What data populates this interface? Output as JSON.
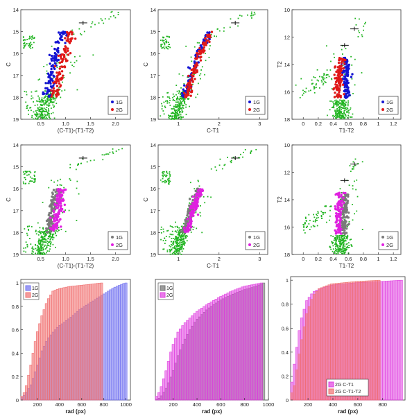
{
  "colors": {
    "field": "#22b522",
    "g1_top": "#1414d2",
    "g2_top": "#e01818",
    "g1_mid": "#7a7a7a",
    "g2_mid": "#e020e0",
    "hist_blue": "#7070f0",
    "hist_red": "#f07070",
    "hist_grey": "#707070",
    "hist_mag": "#e040e0",
    "hist_overlap": "#b0508f"
  },
  "chart_data": [
    {
      "type": "scatter",
      "panel": "top-left",
      "xlabel": "(C-T1)-(T1-T2)",
      "ylabel": "C",
      "xlim": [
        0.1,
        2.3
      ],
      "ylim": [
        19,
        14
      ],
      "y_inverted": true,
      "xticks": [
        "0.5",
        "1.0",
        "1.5",
        "2.0"
      ],
      "yticks": [
        "14",
        "15",
        "16",
        "17",
        "18",
        "19"
      ],
      "legend": {
        "position": "bottom-right",
        "entries": [
          "1G",
          "2G"
        ]
      },
      "series": [
        {
          "name": "1G",
          "ridge": [
            [
              0.62,
              18.0
            ],
            [
              0.72,
              17.0
            ],
            [
              0.8,
              16.0
            ],
            [
              0.95,
              15.0
            ]
          ]
        },
        {
          "name": "2G",
          "ridge": [
            [
              0.78,
              18.0
            ],
            [
              0.88,
              17.0
            ],
            [
              0.98,
              16.0
            ],
            [
              1.1,
              15.0
            ]
          ]
        }
      ],
      "field_stars": "green scattered points (upper RGB/AGB, blue-tail sequence, main sequence below C=18)"
    },
    {
      "type": "scatter",
      "panel": "top-center",
      "xlabel": "C-T1",
      "ylabel": "C",
      "xlim": [
        0.5,
        3.2
      ],
      "ylim": [
        19,
        14
      ],
      "y_inverted": true,
      "xticks": [
        "1",
        "2",
        "3"
      ],
      "yticks": [
        "14",
        "15",
        "16",
        "17",
        "18",
        "19"
      ],
      "legend": {
        "position": "bottom-right",
        "entries": [
          "1G",
          "2G"
        ]
      },
      "series": [
        {
          "name": "1G",
          "ridge": [
            [
              1.15,
              18.0
            ],
            [
              1.3,
              17.0
            ],
            [
              1.5,
              16.0
            ],
            [
              1.75,
              15.0
            ]
          ]
        },
        {
          "name": "2G",
          "ridge": [
            [
              1.2,
              18.0
            ],
            [
              1.35,
              17.0
            ],
            [
              1.55,
              16.0
            ],
            [
              1.8,
              15.0
            ]
          ]
        }
      ]
    },
    {
      "type": "scatter",
      "panel": "top-right",
      "xlabel": "T1-T2",
      "ylabel": "T2",
      "xlim": [
        -0.15,
        1.3
      ],
      "ylim": [
        18,
        10
      ],
      "y_inverted": true,
      "xticks": [
        "0",
        "0.2",
        "0.4",
        "0.6",
        "0.8",
        "1",
        "1.2"
      ],
      "yticks": [
        "10",
        "12",
        "14",
        "16",
        "18"
      ],
      "legend": {
        "position": "bottom-right",
        "entries": [
          "1G",
          "2G"
        ]
      },
      "series": [
        {
          "name": "1G",
          "ridge": [
            [
              0.57,
              16.5
            ],
            [
              0.57,
              15.0
            ],
            [
              0.57,
              13.5
            ]
          ]
        },
        {
          "name": "2G",
          "ridge": [
            [
              0.47,
              16.5
            ],
            [
              0.47,
              15.0
            ],
            [
              0.5,
              13.5
            ]
          ]
        }
      ]
    },
    {
      "type": "scatter",
      "panel": "middle-left",
      "xlabel": "(C-T1)-(T1-T2)",
      "ylabel": "C",
      "xlim": [
        0.1,
        2.3
      ],
      "ylim": [
        19,
        14
      ],
      "y_inverted": true,
      "xticks": [
        "0.5",
        "1.0",
        "1.5",
        "2.0"
      ],
      "yticks": [
        "14",
        "15",
        "16",
        "17",
        "18",
        "19"
      ],
      "legend": {
        "position": "bottom-right",
        "entries": [
          "1G",
          "2G"
        ]
      },
      "series": [
        {
          "name": "1G",
          "ridge": [
            [
              0.65,
              18.0
            ],
            [
              0.75,
              17.0
            ],
            [
              0.82,
              16.0
            ]
          ]
        },
        {
          "name": "2G",
          "ridge": [
            [
              0.75,
              18.0
            ],
            [
              0.85,
              17.0
            ],
            [
              0.92,
              16.0
            ]
          ]
        }
      ]
    },
    {
      "type": "scatter",
      "panel": "middle-center",
      "xlabel": "C-T1",
      "ylabel": "C",
      "xlim": [
        0.5,
        3.2
      ],
      "ylim": [
        19,
        14
      ],
      "y_inverted": true,
      "xticks": [
        "1",
        "2",
        "3"
      ],
      "yticks": [
        "14",
        "15",
        "16",
        "17",
        "18",
        "19"
      ],
      "legend": {
        "position": "bottom-right",
        "entries": [
          "1G",
          "2G"
        ]
      },
      "series": [
        {
          "name": "1G",
          "ridge": [
            [
              1.15,
              18.0
            ],
            [
              1.3,
              17.0
            ],
            [
              1.5,
              16.0
            ]
          ]
        },
        {
          "name": "2G",
          "ridge": [
            [
              1.2,
              18.0
            ],
            [
              1.35,
              17.0
            ],
            [
              1.55,
              16.0
            ]
          ]
        }
      ]
    },
    {
      "type": "scatter",
      "panel": "middle-right",
      "xlabel": "T1-T2",
      "ylabel": "T2",
      "xlim": [
        -0.15,
        1.3
      ],
      "ylim": [
        18,
        10
      ],
      "y_inverted": true,
      "xticks": [
        "0",
        "0.2",
        "0.4",
        "0.6",
        "0.8",
        "1",
        "1.2"
      ],
      "yticks": [
        "10",
        "12",
        "14",
        "16",
        "18"
      ],
      "legend": {
        "position": "bottom-right",
        "entries": [
          "1G",
          "2G"
        ]
      },
      "series": [
        {
          "name": "1G",
          "ridge": [
            [
              0.55,
              16.5
            ],
            [
              0.55,
              15.0
            ],
            [
              0.55,
              13.5
            ]
          ]
        },
        {
          "name": "2G",
          "ridge": [
            [
              0.47,
              16.5
            ],
            [
              0.47,
              15.0
            ],
            [
              0.5,
              13.5
            ]
          ]
        }
      ]
    },
    {
      "type": "bar",
      "panel": "bottom-left",
      "subtype": "cumulative histogram",
      "xlabel": "rad (px)",
      "ylabel": "",
      "xlim": [
        50,
        1040
      ],
      "ylim": [
        0,
        1.03
      ],
      "xticks": [
        "200",
        "400",
        "600",
        "800",
        "1000"
      ],
      "yticks": [
        "0",
        "0.2",
        "0.4",
        "0.6",
        "0.8",
        "1"
      ],
      "legend": {
        "position": "top-left",
        "entries": [
          "1G",
          "2G"
        ]
      },
      "bin_start": 50,
      "bin_width": 20,
      "series": [
        {
          "name": "1G",
          "cdf": [
            [
              50,
              0.0
            ],
            [
              100,
              0.05
            ],
            [
              150,
              0.13
            ],
            [
              200,
              0.27
            ],
            [
              250,
              0.42
            ],
            [
              300,
              0.52
            ],
            [
              350,
              0.58
            ],
            [
              400,
              0.63
            ],
            [
              500,
              0.7
            ],
            [
              600,
              0.78
            ],
            [
              700,
              0.84
            ],
            [
              800,
              0.9
            ],
            [
              900,
              0.96
            ],
            [
              1000,
              1.0
            ]
          ]
        },
        {
          "name": "2G",
          "cdf": [
            [
              50,
              0.0
            ],
            [
              100,
              0.08
            ],
            [
              150,
              0.3
            ],
            [
              200,
              0.55
            ],
            [
              250,
              0.72
            ],
            [
              300,
              0.85
            ],
            [
              350,
              0.93
            ],
            [
              400,
              0.95
            ],
            [
              500,
              0.97
            ],
            [
              600,
              0.98
            ],
            [
              700,
              0.99
            ],
            [
              780,
              1.0
            ]
          ]
        }
      ]
    },
    {
      "type": "bar",
      "panel": "bottom-center",
      "subtype": "cumulative histogram",
      "xlabel": "rad (px)",
      "ylabel": "",
      "xlim": [
        50,
        1000
      ],
      "ylim": [
        0,
        1.03
      ],
      "xticks": [
        "200",
        "400",
        "600",
        "800",
        "1000"
      ],
      "yticks": [],
      "legend": {
        "position": "top-left",
        "entries": [
          "1G",
          "2G"
        ]
      },
      "bin_start": 50,
      "bin_width": 20,
      "series": [
        {
          "name": "1G",
          "cdf": [
            [
              50,
              0.0
            ],
            [
              100,
              0.02
            ],
            [
              150,
              0.1
            ],
            [
              200,
              0.22
            ],
            [
              250,
              0.38
            ],
            [
              300,
              0.5
            ],
            [
              350,
              0.6
            ],
            [
              400,
              0.68
            ],
            [
              500,
              0.78
            ],
            [
              600,
              0.85
            ],
            [
              700,
              0.9
            ],
            [
              800,
              0.94
            ],
            [
              900,
              0.97
            ],
            [
              970,
              1.0
            ]
          ]
        },
        {
          "name": "2G",
          "cdf": [
            [
              50,
              0.0
            ],
            [
              100,
              0.08
            ],
            [
              150,
              0.25
            ],
            [
              200,
              0.45
            ],
            [
              250,
              0.58
            ],
            [
              300,
              0.65
            ],
            [
              350,
              0.7
            ],
            [
              400,
              0.75
            ],
            [
              500,
              0.82
            ],
            [
              600,
              0.88
            ],
            [
              700,
              0.93
            ],
            [
              800,
              0.97
            ],
            [
              900,
              0.99
            ],
            [
              950,
              1.0
            ]
          ]
        }
      ]
    },
    {
      "type": "bar",
      "panel": "bottom-right",
      "subtype": "cumulative histogram",
      "xlabel": "rad (px)",
      "ylabel": "",
      "xlim": [
        60,
        980
      ],
      "ylim": [
        0,
        1.03
      ],
      "xticks": [
        "200",
        "400",
        "600",
        "800"
      ],
      "yticks": [
        "0",
        "0.2",
        "0.4",
        "0.6",
        "0.8",
        "1"
      ],
      "legend": {
        "position": "bottom-center",
        "entries": [
          "2G C-T1",
          "2G C-T1-T2"
        ]
      },
      "bin_start": 60,
      "bin_width": 20,
      "series": [
        {
          "name": "2G C-T1",
          "cdf": [
            [
              60,
              0.0
            ],
            [
              100,
              0.3
            ],
            [
              150,
              0.65
            ],
            [
              200,
              0.83
            ],
            [
              250,
              0.9
            ],
            [
              300,
              0.93
            ],
            [
              400,
              0.96
            ],
            [
              600,
              0.98
            ],
            [
              800,
              0.99
            ],
            [
              950,
              1.0
            ]
          ]
        },
        {
          "name": "2G C-T1-T2",
          "cdf": [
            [
              60,
              0.0
            ],
            [
              100,
              0.12
            ],
            [
              150,
              0.45
            ],
            [
              200,
              0.72
            ],
            [
              250,
              0.87
            ],
            [
              300,
              0.93
            ],
            [
              400,
              0.97
            ],
            [
              600,
              0.99
            ],
            [
              780,
              1.0
            ]
          ]
        }
      ]
    }
  ]
}
